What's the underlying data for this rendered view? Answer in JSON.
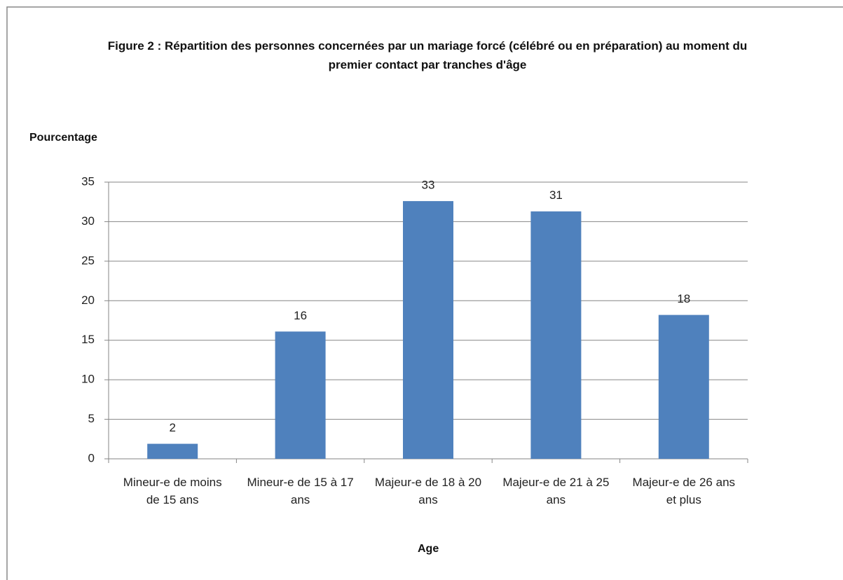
{
  "chart_data": {
    "type": "bar",
    "title": "Figure 2 : Répartition  des personnes concernées par un mariage forcé (célébré ou en préparation) au moment du premier contact par tranches d'âge",
    "y_label": "Pourcentage",
    "x_label": "Age",
    "categories": [
      "Mineur-e de moins de 15 ans",
      "Mineur-e de 15 à 17 ans",
      "Majeur-e de 18 à 20 ans",
      "Majeur-e de 21 à 25 ans",
      "Majeur-e de 26 ans et plus"
    ],
    "values": [
      1.9,
      16.1,
      32.6,
      31.3,
      18.2
    ],
    "value_labels": [
      "2",
      "16",
      "33",
      "31",
      "18"
    ],
    "color": "#4f81bd",
    "ylim": [
      0,
      35
    ],
    "yticks": [
      0,
      5,
      10,
      15,
      20,
      25,
      30,
      35
    ],
    "grid": true
  }
}
